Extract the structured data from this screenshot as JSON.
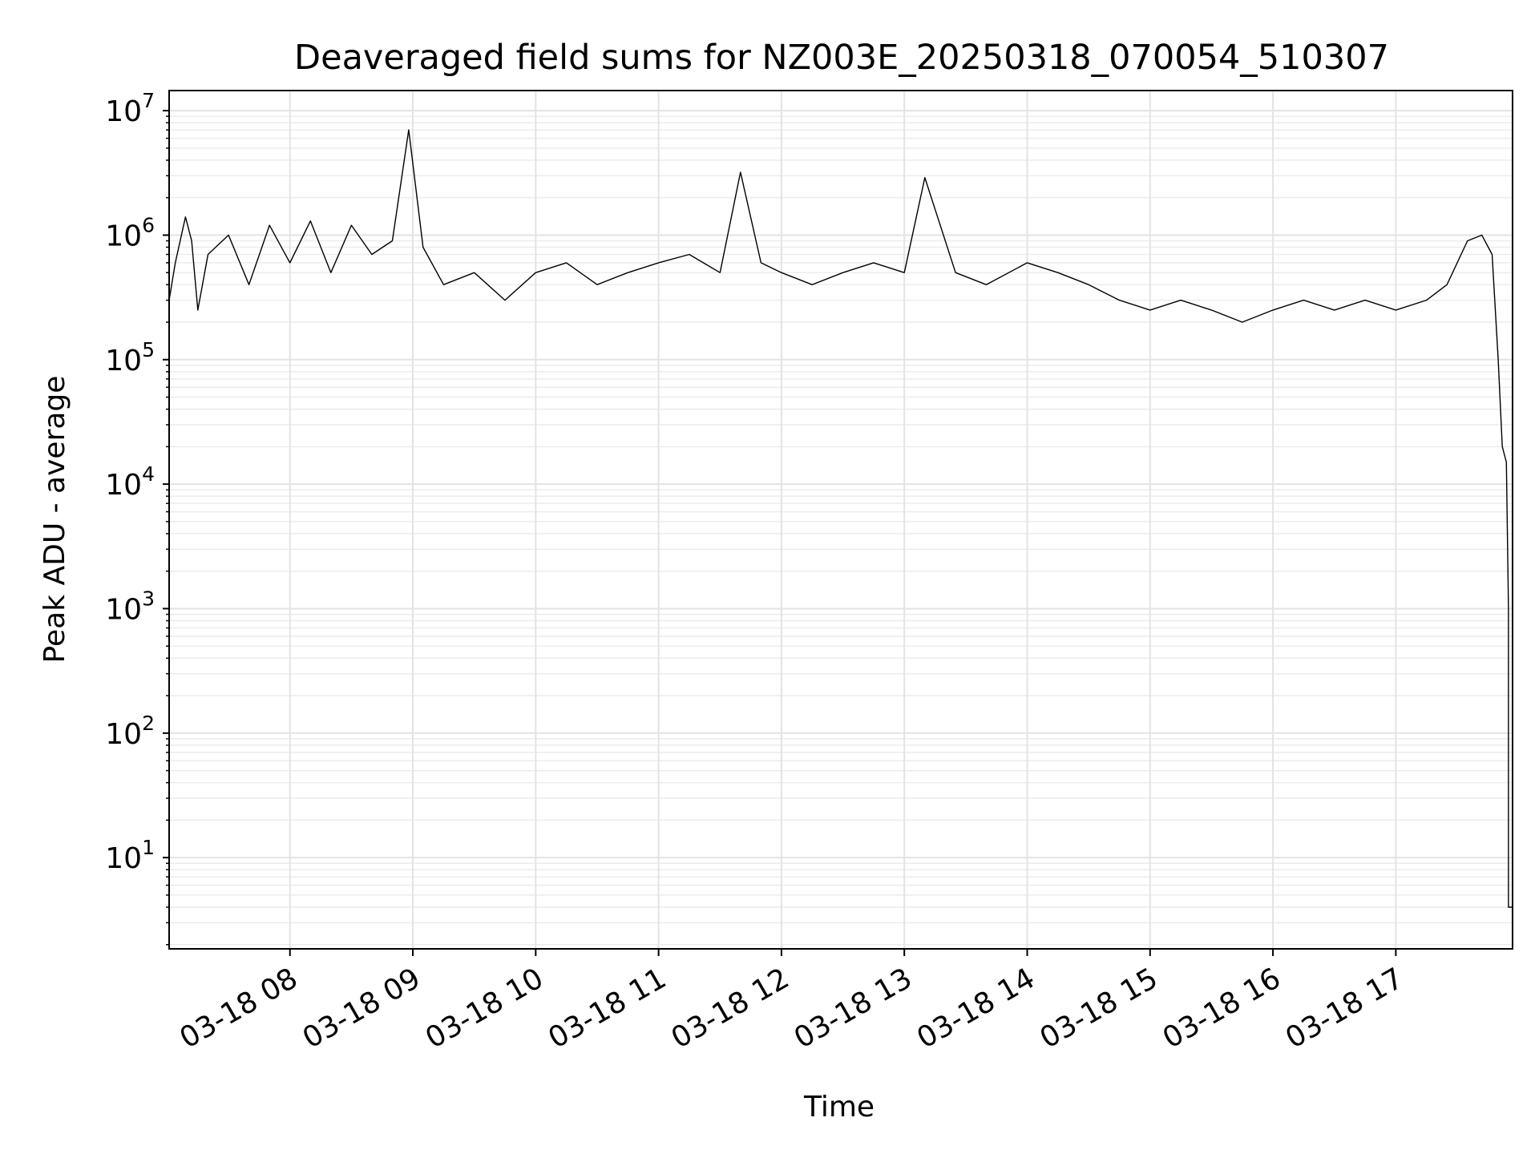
{
  "chart_data": {
    "type": "line",
    "title": "Deaveraged field sums for NZ003E_20250318_070054_510307",
    "xlabel": "Time",
    "ylabel": "Peak ADU - average",
    "yscale": "log",
    "ylim": [
      1.85,
      14500000
    ],
    "xlim": [
      "2025-03-18 07:01",
      "2025-03-18 17:57"
    ],
    "grid": true,
    "x_tick_labels": [
      "03-18 08",
      "03-18 09",
      "03-18 10",
      "03-18 11",
      "03-18 12",
      "03-18 13",
      "03-18 14",
      "03-18 15",
      "03-18 16",
      "03-18 17"
    ],
    "y_tick_labels": [
      {
        "base": "10",
        "exp": "1"
      },
      {
        "base": "10",
        "exp": "2"
      },
      {
        "base": "10",
        "exp": "3"
      },
      {
        "base": "10",
        "exp": "4"
      },
      {
        "base": "10",
        "exp": "5"
      },
      {
        "base": "10",
        "exp": "6"
      },
      {
        "base": "10",
        "exp": "7"
      }
    ],
    "line_color": "#000000",
    "series": [
      {
        "values_note": "",
        "points": [
          [
            "2025-03-18 07:01",
            300000
          ],
          [
            "2025-03-18 07:04",
            600000
          ],
          [
            "2025-03-18 07:09",
            1400000
          ],
          [
            "2025-03-18 07:12",
            900000
          ],
          [
            "2025-03-18 07:15",
            250000
          ],
          [
            "2025-03-18 07:20",
            700000
          ],
          [
            "2025-03-18 07:30",
            1000000
          ],
          [
            "2025-03-18 07:40",
            400000
          ],
          [
            "2025-03-18 07:50",
            1200000
          ],
          [
            "2025-03-18 08:00",
            600000
          ],
          [
            "2025-03-18 08:10",
            1300000
          ],
          [
            "2025-03-18 08:20",
            500000
          ],
          [
            "2025-03-18 08:30",
            1200000
          ],
          [
            "2025-03-18 08:40",
            700000
          ],
          [
            "2025-03-18 08:50",
            900000
          ],
          [
            "2025-03-18 08:58",
            7000000
          ],
          [
            "2025-03-18 09:05",
            800000
          ],
          [
            "2025-03-18 09:15",
            400000
          ],
          [
            "2025-03-18 09:30",
            500000
          ],
          [
            "2025-03-18 09:45",
            300000
          ],
          [
            "2025-03-18 10:00",
            500000
          ],
          [
            "2025-03-18 10:15",
            600000
          ],
          [
            "2025-03-18 10:30",
            400000
          ],
          [
            "2025-03-18 10:45",
            500000
          ],
          [
            "2025-03-18 11:00",
            600000
          ],
          [
            "2025-03-18 11:15",
            700000
          ],
          [
            "2025-03-18 11:30",
            500000
          ],
          [
            "2025-03-18 11:40",
            3200000
          ],
          [
            "2025-03-18 11:50",
            600000
          ],
          [
            "2025-03-18 12:00",
            500000
          ],
          [
            "2025-03-18 12:15",
            400000
          ],
          [
            "2025-03-18 12:30",
            500000
          ],
          [
            "2025-03-18 12:45",
            600000
          ],
          [
            "2025-03-18 13:00",
            500000
          ],
          [
            "2025-03-18 13:10",
            2900000
          ],
          [
            "2025-03-18 13:25",
            500000
          ],
          [
            "2025-03-18 13:40",
            400000
          ],
          [
            "2025-03-18 14:00",
            600000
          ],
          [
            "2025-03-18 14:15",
            500000
          ],
          [
            "2025-03-18 14:30",
            400000
          ],
          [
            "2025-03-18 14:45",
            300000
          ],
          [
            "2025-03-18 15:00",
            250000
          ],
          [
            "2025-03-18 15:15",
            300000
          ],
          [
            "2025-03-18 15:30",
            250000
          ],
          [
            "2025-03-18 15:45",
            200000
          ],
          [
            "2025-03-18 16:00",
            250000
          ],
          [
            "2025-03-18 16:15",
            300000
          ],
          [
            "2025-03-18 16:30",
            250000
          ],
          [
            "2025-03-18 16:45",
            300000
          ],
          [
            "2025-03-18 17:00",
            250000
          ],
          [
            "2025-03-18 17:15",
            300000
          ],
          [
            "2025-03-18 17:25",
            400000
          ],
          [
            "2025-03-18 17:35",
            900000
          ],
          [
            "2025-03-18 17:42",
            1000000
          ],
          [
            "2025-03-18 17:47",
            700000
          ],
          [
            "2025-03-18 17:50",
            100000
          ],
          [
            "2025-03-18 17:52",
            20000
          ],
          [
            "2025-03-18 17:54",
            15000
          ],
          [
            "2025-03-18 17:55",
            1000
          ],
          [
            "2025-03-18 17:55",
            4
          ],
          [
            "2025-03-18 17:57",
            4
          ]
        ]
      }
    ]
  }
}
